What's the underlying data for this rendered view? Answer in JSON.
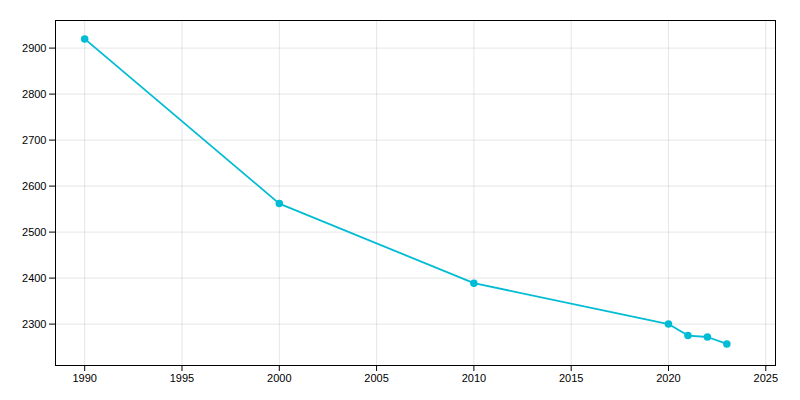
{
  "chart_data": {
    "type": "line",
    "x": [
      1990,
      2000,
      2010,
      2020,
      2021,
      2022,
      2023
    ],
    "values": [
      2920,
      2562,
      2389,
      2300,
      2275,
      2272,
      2257
    ],
    "color": "#00BCD4",
    "marker": "circle",
    "xlim": [
      1988.5,
      2025.5
    ],
    "ylim": [
      2210,
      2960
    ],
    "xticks": [
      1990,
      1995,
      2000,
      2005,
      2010,
      2015,
      2020,
      2025
    ],
    "yticks": [
      2300,
      2400,
      2500,
      2600,
      2700,
      2800,
      2900
    ],
    "grid": true
  }
}
